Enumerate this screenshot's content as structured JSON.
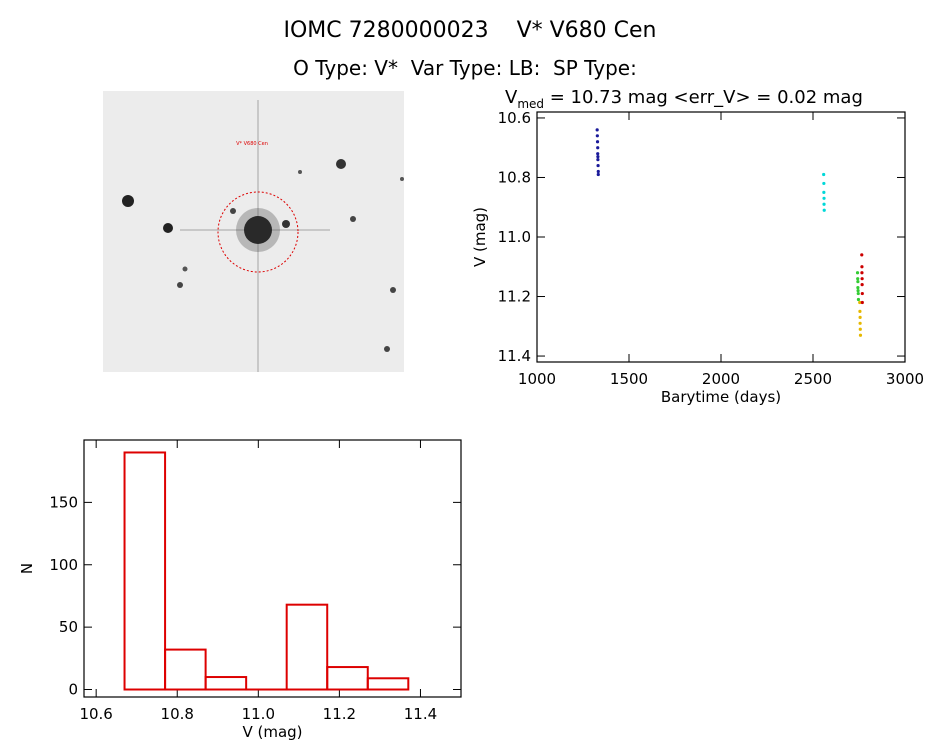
{
  "header": {
    "title": "IOMC 7280000023    V* V680 Cen",
    "subtitle": "O Type: V*  Var Type: LB:  SP Type:"
  },
  "image": {
    "label": "V* V680 Cen"
  },
  "chart_data": [
    {
      "type": "scatter",
      "title": "V",
      "title_sub": "med",
      "title_rest": " = 10.73 mag <err_V> = 0.02 mag",
      "xlabel": "Barytime (days)",
      "ylabel": "V (mag)",
      "xlim": [
        1000,
        3000
      ],
      "xticks": [
        1000,
        1500,
        2000,
        2500,
        3000
      ],
      "ylim": [
        11.42,
        10.58
      ],
      "yticks": [
        10.6,
        10.8,
        {
          "value": 11,
          "label": "11.0"
        },
        11.2,
        11.4
      ],
      "series": [
        {
          "color": "#1a1a9a",
          "x": [
            1327,
            1328,
            1329,
            1330,
            1330,
            1331,
            1331,
            1332,
            1333,
            1333
          ],
          "values": [
            10.64,
            10.66,
            10.68,
            10.7,
            10.72,
            10.73,
            10.74,
            10.76,
            10.78,
            10.79
          ]
        },
        {
          "color": "#00d8d8",
          "x": [
            2558,
            2559,
            2559,
            2560,
            2560,
            2561
          ],
          "values": [
            10.79,
            10.82,
            10.85,
            10.87,
            10.89,
            10.91
          ]
        },
        {
          "color": "#33cc33",
          "x": [
            2742,
            2743,
            2744,
            2744,
            2745,
            2746,
            2747
          ],
          "values": [
            11.12,
            11.14,
            11.15,
            11.17,
            11.18,
            11.19,
            11.21
          ]
        },
        {
          "color": "#e6b800",
          "x": [
            2754,
            2755,
            2756,
            2756,
            2757,
            2758
          ],
          "values": [
            11.22,
            11.25,
            11.27,
            11.29,
            11.31,
            11.33
          ]
        },
        {
          "color": "#cc0000",
          "x": [
            2765,
            2766,
            2766,
            2767,
            2767,
            2768,
            2768
          ],
          "values": [
            11.06,
            11.1,
            11.12,
            11.14,
            11.16,
            11.19,
            11.22
          ]
        }
      ]
    },
    {
      "type": "histogram",
      "xlabel": "V (mag)",
      "ylabel": "N",
      "color": "#dd0000",
      "bins": [
        10.67,
        10.77,
        10.87,
        10.97,
        11.07,
        11.17,
        11.27,
        11.37
      ],
      "values": [
        190,
        32,
        10,
        0,
        68,
        18,
        9
      ],
      "xlim": [
        10.57,
        11.5
      ],
      "xticks": [
        10.6,
        10.8,
        {
          "value": 11,
          "label": "11.0"
        },
        11.2,
        11.4
      ],
      "ylim": [
        -6,
        200
      ],
      "yticks": [
        0,
        50,
        100,
        150
      ]
    }
  ]
}
